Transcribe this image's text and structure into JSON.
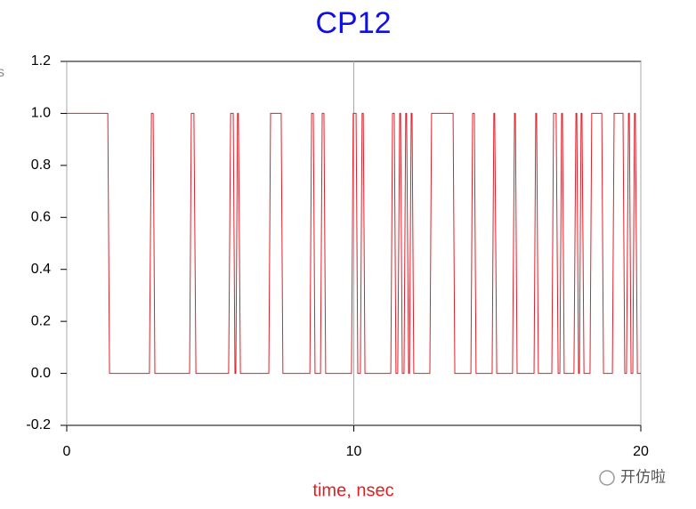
{
  "chart_data": {
    "type": "line",
    "title": "CP12",
    "xlabel": "time, nsec",
    "corner_text": "s",
    "watermark": "开仿啦",
    "x": [
      0,
      1.43,
      1.49,
      2.88,
      2.95,
      3.01,
      3.07,
      4.28,
      4.34,
      4.43,
      4.5,
      5.64,
      5.71,
      5.8,
      5.86,
      5.89,
      5.95,
      5.98,
      6.05,
      7.04,
      7.1,
      7.47,
      7.53,
      8.47,
      8.53,
      8.59,
      8.65,
      8.84,
      8.9,
      8.96,
      9.02,
      9.92,
      9.98,
      10.08,
      10.14,
      10.23,
      10.29,
      10.33,
      10.39,
      11.29,
      11.35,
      11.41,
      11.47,
      11.53,
      11.6,
      11.63,
      11.69,
      11.75,
      11.81,
      11.84,
      11.91,
      11.94,
      12.0,
      12.03,
      12.09,
      12.65,
      12.71,
      13.46,
      13.52,
      14.08,
      14.14,
      14.2,
      14.26,
      14.82,
      14.88,
      14.91,
      14.98,
      15.53,
      15.6,
      15.63,
      15.69,
      16.28,
      16.34,
      16.37,
      16.43,
      16.9,
      16.96,
      17.05,
      17.12,
      17.18,
      17.24,
      17.27,
      17.33,
      17.67,
      17.74,
      17.77,
      17.83,
      17.86,
      17.92,
      17.95,
      18.02,
      18.23,
      18.29,
      18.64,
      18.7,
      19.01,
      19.07,
      19.38,
      19.44,
      19.5,
      19.57,
      19.6,
      19.66,
      19.72,
      19.78,
      19.81,
      19.88,
      20
    ],
    "values": [
      1,
      1,
      0,
      0,
      1,
      1,
      0,
      0,
      1,
      1,
      0,
      0,
      1,
      1,
      0,
      0,
      1,
      1,
      0,
      0,
      1,
      1,
      0,
      0,
      1,
      1,
      0,
      0,
      1,
      1,
      0,
      0,
      1,
      1,
      0,
      0,
      1,
      1,
      0,
      0,
      1,
      1,
      0,
      0,
      1,
      1,
      0,
      0,
      1,
      1,
      0,
      0,
      1,
      1,
      0,
      0,
      1,
      1,
      0,
      0,
      1,
      1,
      0,
      0,
      1,
      1,
      0,
      0,
      1,
      1,
      0,
      0,
      1,
      1,
      0,
      0,
      1,
      1,
      0,
      0,
      1,
      1,
      0,
      0,
      1,
      1,
      0,
      0,
      1,
      1,
      0,
      0,
      1,
      1,
      0,
      0,
      1,
      1,
      0,
      0,
      1,
      1,
      0,
      0,
      1,
      1,
      0,
      0
    ],
    "color": "#e0202a",
    "xlim": [
      0,
      20
    ],
    "xticks": [
      0,
      10,
      20
    ],
    "ylim": [
      -0.2,
      1.2
    ],
    "yticks": [
      -0.2,
      {
        "value": 0,
        "label": "0.0"
      },
      0.2,
      0.4,
      0.6,
      0.8,
      {
        "value": 1,
        "label": "1.0"
      },
      1.2
    ],
    "xgrid": true
  }
}
